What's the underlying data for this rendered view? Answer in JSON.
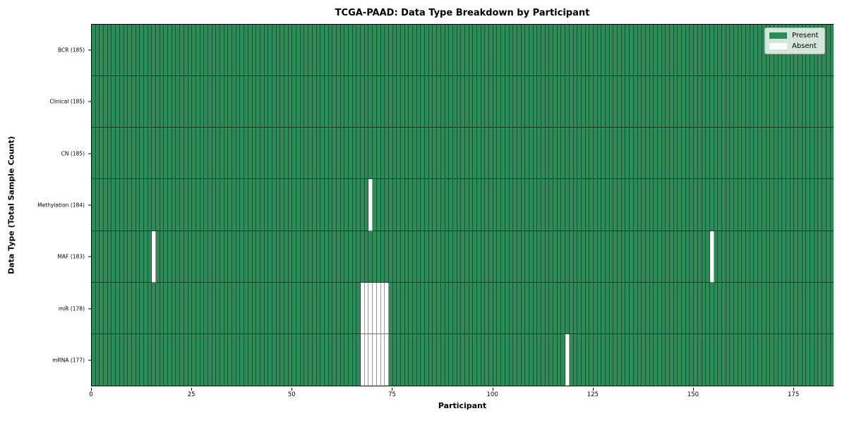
{
  "chart_data": {
    "type": "heatmap",
    "title": "TCGA-PAAD: Data Type Breakdown by Participant",
    "xlabel": "Participant",
    "ylabel": "Data Type (Total Sample Count)",
    "xlim": [
      0,
      185
    ],
    "n_participants": 185,
    "x_ticks": [
      0,
      25,
      50,
      75,
      100,
      125,
      150,
      175
    ],
    "grid": false,
    "legend_position": "upper right",
    "colors": {
      "present": "#2e8b57",
      "absent": "#ffffff"
    },
    "legend": [
      {
        "label": "Present",
        "color": "#2e8b57"
      },
      {
        "label": "Absent",
        "color": "#ffffff"
      }
    ],
    "rows": [
      {
        "label": "BCR (185)",
        "data_type": "BCR",
        "total_samples": 185,
        "absent_participants": []
      },
      {
        "label": "Clinical (185)",
        "data_type": "Clinical",
        "total_samples": 185,
        "absent_participants": []
      },
      {
        "label": "CN (185)",
        "data_type": "CN",
        "total_samples": 185,
        "absent_participants": []
      },
      {
        "label": "Methylation (184)",
        "data_type": "Methylation",
        "total_samples": 184,
        "absent_participants": [
          69
        ]
      },
      {
        "label": "MAF (183)",
        "data_type": "MAF",
        "total_samples": 183,
        "absent_participants": [
          15,
          154
        ]
      },
      {
        "label": "miR (178)",
        "data_type": "miR",
        "total_samples": 178,
        "absent_participants": [
          67,
          68,
          69,
          70,
          71,
          72,
          73
        ]
      },
      {
        "label": "mRNA (177)",
        "data_type": "mRNA",
        "total_samples": 177,
        "absent_participants": [
          67,
          68,
          69,
          70,
          71,
          72,
          73,
          118
        ]
      }
    ]
  }
}
